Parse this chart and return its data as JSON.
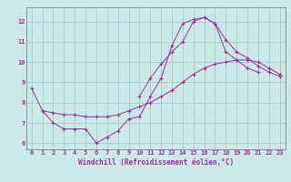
{
  "xlabel": "Windchill (Refroidissement éolien,°C)",
  "background_color": "#cce8e8",
  "grid_color": "#aacece",
  "line_color": "#993399",
  "xlim": [
    -0.5,
    23.5
  ],
  "ylim": [
    5.7,
    12.7
  ],
  "xticks": [
    0,
    1,
    2,
    3,
    4,
    5,
    6,
    7,
    8,
    9,
    10,
    11,
    12,
    13,
    14,
    15,
    16,
    17,
    18,
    19,
    20,
    21,
    22,
    23
  ],
  "yticks": [
    6,
    7,
    8,
    9,
    10,
    11,
    12
  ],
  "series1_x": [
    0,
    1,
    2,
    3,
    4,
    5,
    6,
    7,
    8,
    9,
    10,
    11,
    12,
    13,
    14,
    15,
    16,
    17,
    18,
    19,
    20,
    21
  ],
  "series1_y": [
    8.7,
    7.6,
    7.0,
    6.7,
    6.7,
    6.7,
    6.0,
    6.3,
    6.6,
    7.2,
    7.3,
    8.3,
    9.2,
    10.8,
    11.9,
    12.1,
    12.2,
    11.9,
    10.5,
    10.1,
    9.7,
    9.5
  ],
  "series2_x": [
    1,
    2,
    3,
    4,
    5,
    6,
    7,
    8,
    9,
    10,
    11,
    12,
    13,
    14,
    15,
    16,
    17,
    18,
    19,
    20,
    21,
    22,
    23
  ],
  "series2_y": [
    7.6,
    7.5,
    7.4,
    7.4,
    7.3,
    7.3,
    7.3,
    7.4,
    7.6,
    7.8,
    8.0,
    8.3,
    8.6,
    9.0,
    9.4,
    9.7,
    9.9,
    10.0,
    10.1,
    10.1,
    10.0,
    9.7,
    9.4
  ],
  "series3_x": [
    10,
    11,
    12,
    13,
    14,
    15,
    16,
    17,
    18,
    19,
    20,
    21,
    22,
    23
  ],
  "series3_y": [
    8.3,
    9.2,
    9.9,
    10.5,
    11.0,
    12.0,
    12.2,
    11.9,
    11.1,
    10.5,
    10.2,
    9.8,
    9.5,
    9.3
  ],
  "tick_fontsize": 5.0,
  "xlabel_fontsize": 5.5
}
